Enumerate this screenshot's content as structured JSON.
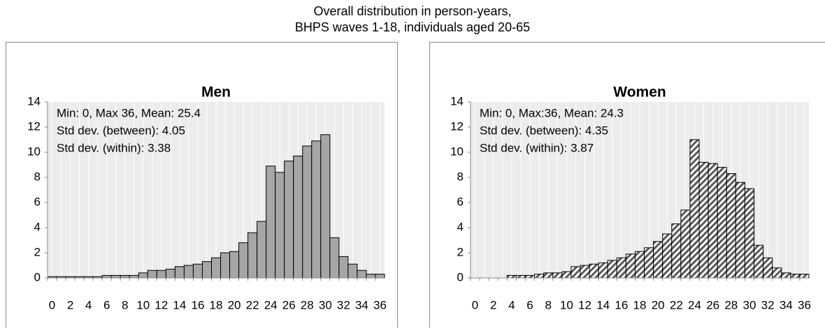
{
  "title": "Overall distribution in person-years,",
  "subtitle": "BHPS waves 1-18, individuals aged 20-65",
  "chart_data": [
    {
      "type": "bar",
      "title": "Men",
      "annotations": [
        "Min: 0, Max 36, Mean: 25.4",
        "Std dev. (between):  4.05",
        "Std dev. (within):  3.38"
      ],
      "categories": [
        "0",
        null,
        "2",
        null,
        "4",
        null,
        "6",
        null,
        "8",
        null,
        "10",
        null,
        "12",
        null,
        "14",
        null,
        "16",
        null,
        "18",
        null,
        "20",
        null,
        "22",
        null,
        "24",
        null,
        "26",
        null,
        "28",
        null,
        "30",
        null,
        "32",
        null,
        "34",
        null,
        "36"
      ],
      "values": [
        0.1,
        0.1,
        0.1,
        0.1,
        0.1,
        0.1,
        0.2,
        0.2,
        0.2,
        0.2,
        0.4,
        0.6,
        0.6,
        0.7,
        0.9,
        1.0,
        1.1,
        1.3,
        1.6,
        2.0,
        2.1,
        2.8,
        3.6,
        4.5,
        8.9,
        8.4,
        9.3,
        9.7,
        10.5,
        10.9,
        11.4,
        3.2,
        1.7,
        1.1,
        0.6,
        0.3,
        0.3
      ],
      "color": "#a6a6a6",
      "ylim": [
        0,
        14
      ],
      "yticks": [
        0,
        2,
        4,
        6,
        8,
        10,
        12,
        14
      ],
      "grid": true
    },
    {
      "type": "bar",
      "title": "Women",
      "annotations": [
        "Min: 0, Max:36, Mean: 24.3",
        "Std dev. (between):  4.35",
        "Std dev. (within):  3.87"
      ],
      "categories": [
        "0",
        null,
        "2",
        null,
        "4",
        null,
        "6",
        null,
        "8",
        null,
        "10",
        null,
        "12",
        null,
        "14",
        null,
        "16",
        null,
        "18",
        null,
        "20",
        null,
        "22",
        null,
        "24",
        null,
        "26",
        null,
        "28",
        null,
        "30",
        null,
        "32",
        null,
        "34",
        null,
        "36"
      ],
      "values": [
        0,
        0,
        0,
        0,
        0.2,
        0.2,
        0.2,
        0.3,
        0.4,
        0.4,
        0.5,
        0.9,
        1.0,
        1.1,
        1.2,
        1.4,
        1.6,
        1.9,
        2.1,
        2.4,
        2.9,
        3.5,
        4.3,
        5.4,
        11.0,
        9.2,
        9.1,
        8.8,
        8.3,
        7.6,
        7.1,
        2.6,
        1.6,
        0.8,
        0.4,
        0.3,
        0.3
      ],
      "color": "#595959",
      "fill_pattern": "diagonal-stripes",
      "ylim": [
        0,
        14
      ],
      "yticks": [
        0,
        2,
        4,
        6,
        8,
        10,
        12,
        14
      ],
      "grid": true
    }
  ]
}
